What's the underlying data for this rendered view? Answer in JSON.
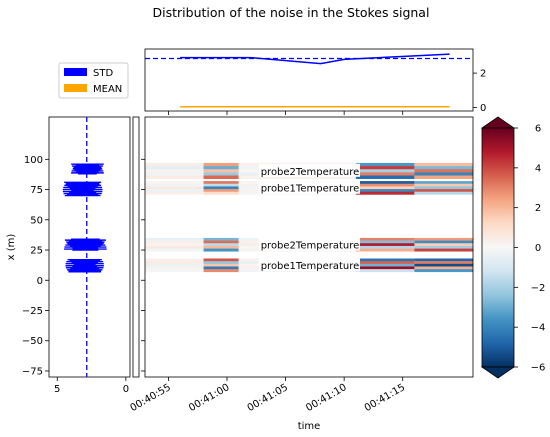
{
  "chart_data": {
    "type": "composite",
    "title": "Distribution of the noise in the Stokes signal",
    "legend": {
      "placement": "top-left",
      "entries": [
        {
          "label": "STD",
          "color": "#0000ff"
        },
        {
          "label": "MEAN",
          "color": "#ffa500"
        }
      ]
    },
    "top_panel": {
      "type": "line",
      "x": [
        "00:40:56",
        "00:41:02",
        "00:41:08",
        "00:41:10",
        "00:41:16",
        "00:41:19"
      ],
      "series": [
        {
          "name": "STD",
          "color": "#0000ff",
          "values": [
            2.9,
            2.9,
            2.55,
            2.8,
            3.0,
            3.1
          ]
        },
        {
          "name": "MEAN",
          "color": "#ffa500",
          "values": [
            0.05,
            0.05,
            0.05,
            0.05,
            0.05,
            0.05
          ]
        }
      ],
      "reference_line": {
        "value": 2.85,
        "style": "dashed",
        "color": "#0000ff"
      },
      "yticks": [
        "0",
        "2"
      ],
      "ylim": [
        -0.2,
        3.4
      ]
    },
    "side_panel": {
      "type": "horizontal-bar",
      "xticks": [
        "5",
        "0"
      ],
      "xlim": [
        5.6,
        -0.3
      ],
      "reference_line": {
        "value": 2.85,
        "style": "dashed",
        "color": "#0000ff"
      },
      "std_segments": [
        {
          "y": [
            88,
            96
          ],
          "x_range": [
            1.6,
            4.0
          ]
        },
        {
          "y": [
            70,
            81
          ],
          "x_range": [
            1.7,
            4.6
          ]
        },
        {
          "y": [
            25,
            34
          ],
          "x_range": [
            1.4,
            4.5
          ]
        },
        {
          "y": [
            7,
            17
          ],
          "x_range": [
            1.6,
            4.4
          ]
        }
      ]
    },
    "main_panel": {
      "type": "heatmap",
      "xlabel": "time",
      "ylabel": "x (m)",
      "xticks": [
        "00:40:55",
        "00:41:00",
        "00:41:05",
        "00:41:10",
        "00:41:15"
      ],
      "xlim_seconds": [
        53,
        81
      ],
      "yticks": [
        "100",
        "75",
        "50",
        "25",
        "0",
        "−25",
        "−50",
        "−75"
      ],
      "ylim": [
        -80,
        135
      ],
      "bands": [
        {
          "y": [
            84,
            97
          ],
          "label": "probe2Temperature"
        },
        {
          "y": [
            71,
            82
          ],
          "label": "probe1Temperature"
        },
        {
          "y": [
            24,
            35
          ],
          "label": "probe2Temperature"
        },
        {
          "y": [
            7,
            18
          ],
          "label": "probe1Temperature"
        }
      ],
      "time_columns": [
        {
          "t": [
            53,
            58
          ],
          "values": [
            [
              0.4,
              -0.6,
              0.2,
              -0.3,
              0.5
            ],
            [
              0.1,
              -0.2,
              0.6,
              -0.4,
              0.3
            ],
            [
              -0.5,
              0.3,
              0.2,
              0.6,
              -0.2
            ],
            [
              0.3,
              0.5,
              -0.4,
              0.2,
              -0.1
            ]
          ]
        },
        {
          "t": [
            58,
            61
          ],
          "values": [
            [
              2.5,
              -3.0,
              1.8,
              -2.2,
              3.5
            ],
            [
              3.2,
              -1.5,
              -4.0,
              2.6,
              1.1
            ],
            [
              -2.8,
              3.4,
              -1.6,
              2.0,
              -3.6
            ],
            [
              3.8,
              -2.4,
              1.7,
              -4.2,
              2.9
            ]
          ]
        },
        {
          "t": [
            61,
            71
          ],
          "values": [
            [
              0.3,
              -0.2,
              0.1,
              -0.4,
              0.2
            ],
            [
              0.1,
              0.3,
              -0.2,
              0.2,
              -0.1
            ],
            [
              -0.3,
              0.2,
              0.4,
              -0.1,
              0.2
            ],
            [
              0.2,
              -0.4,
              0.1,
              0.3,
              -0.2
            ]
          ]
        },
        {
          "t": [
            71,
            76
          ],
          "values": [
            [
              -3.5,
              4.2,
              -2.0,
              3.1,
              -4.6
            ],
            [
              -5.0,
              2.8,
              1.4,
              -3.9,
              4.5
            ],
            [
              3.0,
              -2.6,
              4.8,
              -1.8,
              2.2
            ],
            [
              -4.4,
              3.6,
              -2.9,
              5.2,
              -1.3
            ]
          ]
        },
        {
          "t": [
            76,
            81
          ],
          "values": [
            [
              1.9,
              -2.7,
              3.3,
              -4.0,
              2.4
            ],
            [
              -3.2,
              1.6,
              -2.4,
              3.8,
              -1.7
            ],
            [
              2.6,
              -3.8,
              1.5,
              -2.1,
              4.1
            ],
            [
              -4.8,
              3.1,
              -5.4,
              2.2,
              -3.5
            ]
          ]
        }
      ]
    },
    "colorbar": {
      "ticks": [
        "−6",
        "−4",
        "−2",
        "0",
        "2",
        "4",
        "6"
      ],
      "vmin": -6,
      "vmax": 6,
      "cmap": "RdBu_r"
    }
  }
}
